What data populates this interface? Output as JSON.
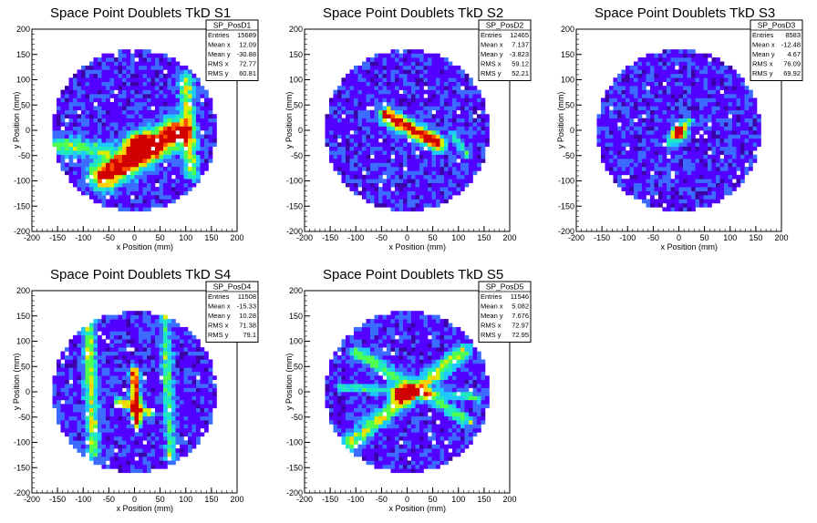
{
  "chart_data": [
    {
      "type": "heatmap",
      "title": "Space Point Doublets TkD S1",
      "xlabel": "x Position (mm)",
      "ylabel": "y Position (mm)",
      "xlim": [
        -200,
        200
      ],
      "ylim": [
        -200,
        200
      ],
      "xticks": [
        -200,
        -150,
        -100,
        -50,
        0,
        50,
        100,
        150,
        200
      ],
      "yticks": [
        -200,
        -150,
        -100,
        -50,
        0,
        50,
        100,
        150,
        200
      ],
      "detector_radius": 160,
      "features": [
        {
          "kind": "band",
          "x1": -60,
          "y1": -90,
          "x2": 80,
          "y2": -5,
          "width": 18,
          "peak": 0.95
        },
        {
          "kind": "band",
          "x1": -150,
          "y1": -30,
          "x2": -60,
          "y2": -40,
          "width": 12,
          "peak": 0.4
        },
        {
          "kind": "band",
          "x1": 100,
          "y1": 100,
          "x2": 110,
          "y2": -80,
          "width": 10,
          "peak": 0.45
        },
        {
          "kind": "blob",
          "x": 10,
          "y": -30,
          "s": 18,
          "peak": 0.9
        }
      ],
      "stats": {
        "name": "SP_PosD1",
        "rows": [
          [
            "Entries",
            "15689"
          ],
          [
            "Mean x",
            "12.09"
          ],
          [
            "Mean y",
            "-30.88"
          ],
          [
            "RMS x",
            "72.77"
          ],
          [
            "RMS y",
            "60.81"
          ]
        ]
      }
    },
    {
      "type": "heatmap",
      "title": "Space Point Doublets TkD S2",
      "xlabel": "x Position (mm)",
      "ylabel": "y Position (mm)",
      "xlim": [
        -200,
        200
      ],
      "ylim": [
        -200,
        200
      ],
      "xticks": [
        -200,
        -150,
        -100,
        -50,
        0,
        50,
        100,
        150,
        200
      ],
      "yticks": [
        -200,
        -150,
        -100,
        -50,
        0,
        50,
        100,
        150,
        200
      ],
      "detector_radius": 160,
      "features": [
        {
          "kind": "band",
          "x1": -40,
          "y1": 30,
          "x2": 60,
          "y2": -25,
          "width": 10,
          "peak": 0.95
        },
        {
          "kind": "band",
          "x1": 90,
          "y1": -10,
          "x2": 120,
          "y2": -50,
          "width": 6,
          "peak": 0.25
        }
      ],
      "stats": {
        "name": "SP_PosD2",
        "rows": [
          [
            "Entries",
            "12465"
          ],
          [
            "Mean x",
            "7.137"
          ],
          [
            "Mean y",
            "-3.823"
          ],
          [
            "RMS x",
            "59.12"
          ],
          [
            "RMS y",
            "52.21"
          ]
        ]
      }
    },
    {
      "type": "heatmap",
      "title": "Space Point Doublets TkD S3",
      "xlabel": "x Position (mm)",
      "ylabel": "y Position (mm)",
      "xlim": [
        -200,
        200
      ],
      "ylim": [
        -200,
        200
      ],
      "xticks": [
        -200,
        -150,
        -100,
        -50,
        0,
        50,
        100,
        150,
        200
      ],
      "yticks": [
        -200,
        -150,
        -100,
        -50,
        0,
        50,
        100,
        150,
        200
      ],
      "detector_radius": 160,
      "features": [
        {
          "kind": "blob",
          "x": 0,
          "y": -5,
          "s": 10,
          "peak": 0.9
        },
        {
          "kind": "band",
          "x1": -20,
          "y1": -25,
          "x2": 20,
          "y2": 20,
          "width": 5,
          "peak": 0.35
        }
      ],
      "stats": {
        "name": "SP_PosD3",
        "rows": [
          [
            "Entries",
            "8583"
          ],
          [
            "Mean x",
            "-12.48"
          ],
          [
            "Mean y",
            "4.67"
          ],
          [
            "RMS x",
            "76.09"
          ],
          [
            "RMS y",
            "69.92"
          ]
        ]
      }
    },
    {
      "type": "heatmap",
      "title": "Space Point Doublets TkD S4",
      "xlabel": "x Position (mm)",
      "ylabel": "y Position (mm)",
      "xlim": [
        -200,
        200
      ],
      "ylim": [
        -200,
        200
      ],
      "xticks": [
        -200,
        -150,
        -100,
        -50,
        0,
        50,
        100,
        150,
        200
      ],
      "yticks": [
        -200,
        -150,
        -100,
        -50,
        0,
        50,
        100,
        150,
        200
      ],
      "detector_radius": 160,
      "features": [
        {
          "kind": "band",
          "x1": 0,
          "y1": 40,
          "x2": 5,
          "y2": -60,
          "width": 6,
          "peak": 0.95
        },
        {
          "kind": "band",
          "x1": -90,
          "y1": 140,
          "x2": -80,
          "y2": -120,
          "width": 8,
          "peak": 0.45
        },
        {
          "kind": "band",
          "x1": 60,
          "y1": 150,
          "x2": 70,
          "y2": -130,
          "width": 7,
          "peak": 0.35
        },
        {
          "kind": "band",
          "x1": -30,
          "y1": -20,
          "x2": 30,
          "y2": -40,
          "width": 6,
          "peak": 0.55
        }
      ],
      "stats": {
        "name": "SP_PosD4",
        "rows": [
          [
            "Entries",
            "11508"
          ],
          [
            "Mean x",
            "-15.33"
          ],
          [
            "Mean y",
            "10.28"
          ],
          [
            "RMS x",
            "71.38"
          ],
          [
            "RMS y",
            "79.1"
          ]
        ]
      }
    },
    {
      "type": "heatmap",
      "title": "Space Point Doublets TkD S5",
      "xlabel": "x Position (mm)",
      "ylabel": "y Position (mm)",
      "xlim": [
        -200,
        200
      ],
      "ylim": [
        -200,
        200
      ],
      "xticks": [
        -200,
        -150,
        -100,
        -50,
        0,
        50,
        100,
        150,
        200
      ],
      "yticks": [
        -200,
        -150,
        -100,
        -50,
        0,
        50,
        100,
        150,
        200
      ],
      "detector_radius": 160,
      "features": [
        {
          "kind": "band",
          "x1": -110,
          "y1": -100,
          "x2": 110,
          "y2": 80,
          "width": 10,
          "peak": 0.5
        },
        {
          "kind": "band",
          "x1": -100,
          "y1": 80,
          "x2": 120,
          "y2": -60,
          "width": 8,
          "peak": 0.4
        },
        {
          "kind": "band",
          "x1": -130,
          "y1": 10,
          "x2": 140,
          "y2": -10,
          "width": 6,
          "peak": 0.3
        },
        {
          "kind": "blob",
          "x": -10,
          "y": -5,
          "s": 12,
          "peak": 0.85
        }
      ],
      "stats": {
        "name": "SP_PosD5",
        "rows": [
          [
            "Entries",
            "11546"
          ],
          [
            "Mean x",
            "5.082"
          ],
          [
            "Mean y",
            "7.676"
          ],
          [
            "RMS x",
            "72.97"
          ],
          [
            "RMS y",
            "72.95"
          ]
        ]
      }
    }
  ],
  "colors": {
    "background": "#ffffff",
    "palette": [
      "#3c00a8",
      "#5200ff",
      "#3c6cff",
      "#1ec8ff",
      "#20e8c0",
      "#50ff50",
      "#d8f000",
      "#ffd000",
      "#ff5000",
      "#d00000"
    ]
  }
}
